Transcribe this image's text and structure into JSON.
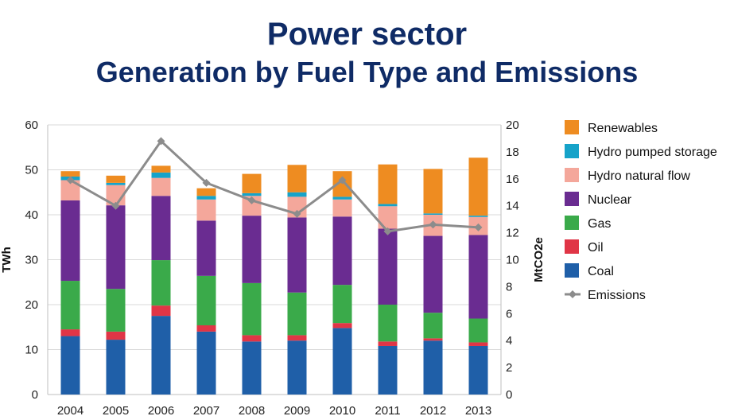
{
  "title": {
    "line1": "Power sector",
    "line2": "Generation by Fuel Type and Emissions"
  },
  "chart_data": {
    "type": "bar",
    "stacked": true,
    "categories": [
      "2004",
      "2005",
      "2006",
      "2007",
      "2008",
      "2009",
      "2010",
      "2011",
      "2012",
      "2013"
    ],
    "ylabel": "TWh",
    "y2label": "MtCO2e",
    "ylim": [
      0,
      60
    ],
    "y2lim": [
      0,
      20
    ],
    "yticks": [
      0,
      10,
      20,
      30,
      40,
      50,
      60
    ],
    "y2ticks": [
      0,
      2,
      4,
      6,
      8,
      10,
      12,
      14,
      16,
      18,
      20
    ],
    "grid": true,
    "legend_position": "right",
    "series": [
      {
        "name": "Coal",
        "color": "#1f5fa8",
        "values": [
          13,
          12.2,
          17.5,
          14,
          11.8,
          12,
          14.8,
          10.8,
          12,
          10.8
        ]
      },
      {
        "name": "Oil",
        "color": "#e03546",
        "values": [
          1.5,
          1.8,
          2.3,
          1.4,
          1.4,
          1.2,
          1.1,
          1,
          0.5,
          0.8
        ]
      },
      {
        "name": "Gas",
        "color": "#3aaa4a",
        "values": [
          10.8,
          9.5,
          10.1,
          11,
          11.6,
          9.5,
          8.5,
          8.2,
          5.7,
          5.3
        ]
      },
      {
        "name": "Nuclear",
        "color": "#6a2c91",
        "values": [
          17.9,
          18.6,
          14.3,
          12.3,
          15,
          16.7,
          15.2,
          16.9,
          17.1,
          18.6
        ]
      },
      {
        "name": "Hydro natural flow",
        "color": "#f4a79b",
        "values": [
          4.5,
          4.5,
          4,
          4.7,
          4.4,
          4.6,
          3.8,
          5,
          4.7,
          4
        ]
      },
      {
        "name": "Hydro pumped storage",
        "color": "#16a3c9",
        "values": [
          0.8,
          0.5,
          1.2,
          0.8,
          0.6,
          1,
          0.6,
          0.5,
          0.3,
          0.3
        ]
      },
      {
        "name": "Renewables",
        "color": "#ee8c21",
        "values": [
          1.2,
          1.6,
          1.5,
          1.7,
          4.3,
          6.1,
          5.7,
          8.8,
          9.9,
          12.9
        ]
      }
    ],
    "line_series": {
      "name": "Emissions",
      "axis": "right",
      "color": "#8c8c8c",
      "values": [
        15.9,
        14.0,
        18.8,
        15.7,
        14.4,
        13.4,
        15.9,
        12.1,
        12.6,
        12.4
      ]
    },
    "legend_order": [
      "Renewables",
      "Hydro pumped storage",
      "Hydro natural flow",
      "Nuclear",
      "Gas",
      "Oil",
      "Coal",
      "Emissions"
    ]
  }
}
